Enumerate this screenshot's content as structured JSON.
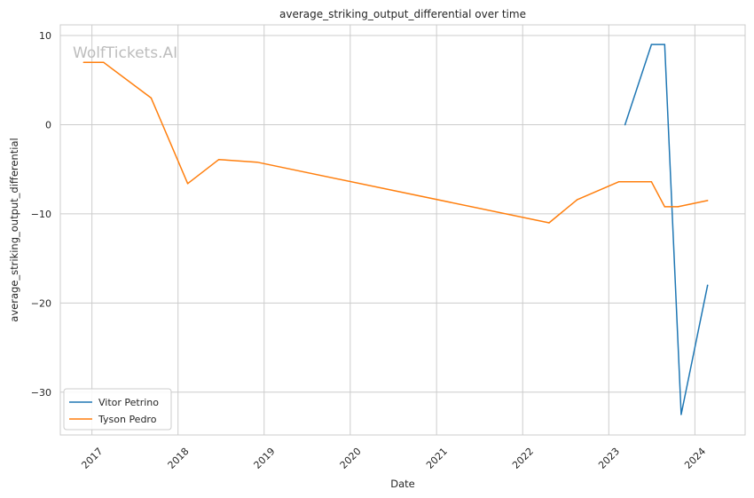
{
  "chart_data": {
    "type": "line",
    "title": "average_striking_output_differential over time",
    "xlabel": "Date",
    "ylabel": "average_striking_output_differential",
    "watermark": "WolfTickets.AI",
    "xlim": [
      "2016-08-20",
      "2024-08-01"
    ],
    "ylim": [
      -34.8,
      11.2
    ],
    "x_ticks": [
      "2017",
      "2018",
      "2019",
      "2020",
      "2021",
      "2022",
      "2023",
      "2024"
    ],
    "y_ticks": [
      10,
      0,
      -10,
      -20,
      -30
    ],
    "y_tick_labels": [
      "10",
      "0",
      "−10",
      "−20",
      "−30"
    ],
    "grid": true,
    "legend_position": "lower-left",
    "series": [
      {
        "name": "Vitor Petrino",
        "color": "#1f77b4",
        "points": [
          [
            "2023-03-11",
            0
          ],
          [
            "2023-07-01",
            9
          ],
          [
            "2023-08-26",
            9
          ],
          [
            "2023-11-04",
            -32.5
          ],
          [
            "2024-02-24",
            -18
          ]
        ]
      },
      {
        "name": "Tyson Pedro",
        "color": "#ff7f0e",
        "points": [
          [
            "2016-11-27",
            7
          ],
          [
            "2017-02-19",
            7
          ],
          [
            "2017-09-09",
            3
          ],
          [
            "2018-02-11",
            -6.6
          ],
          [
            "2018-06-23",
            -3.9
          ],
          [
            "2018-12-02",
            -4.2
          ],
          [
            "2022-04-23",
            -11
          ],
          [
            "2022-08-20",
            -8.4
          ],
          [
            "2023-02-12",
            -6.4
          ],
          [
            "2023-07-01",
            -6.4
          ],
          [
            "2023-08-26",
            -9.2
          ],
          [
            "2023-10-21",
            -9.2
          ],
          [
            "2024-02-24",
            -8.5
          ]
        ]
      }
    ]
  }
}
